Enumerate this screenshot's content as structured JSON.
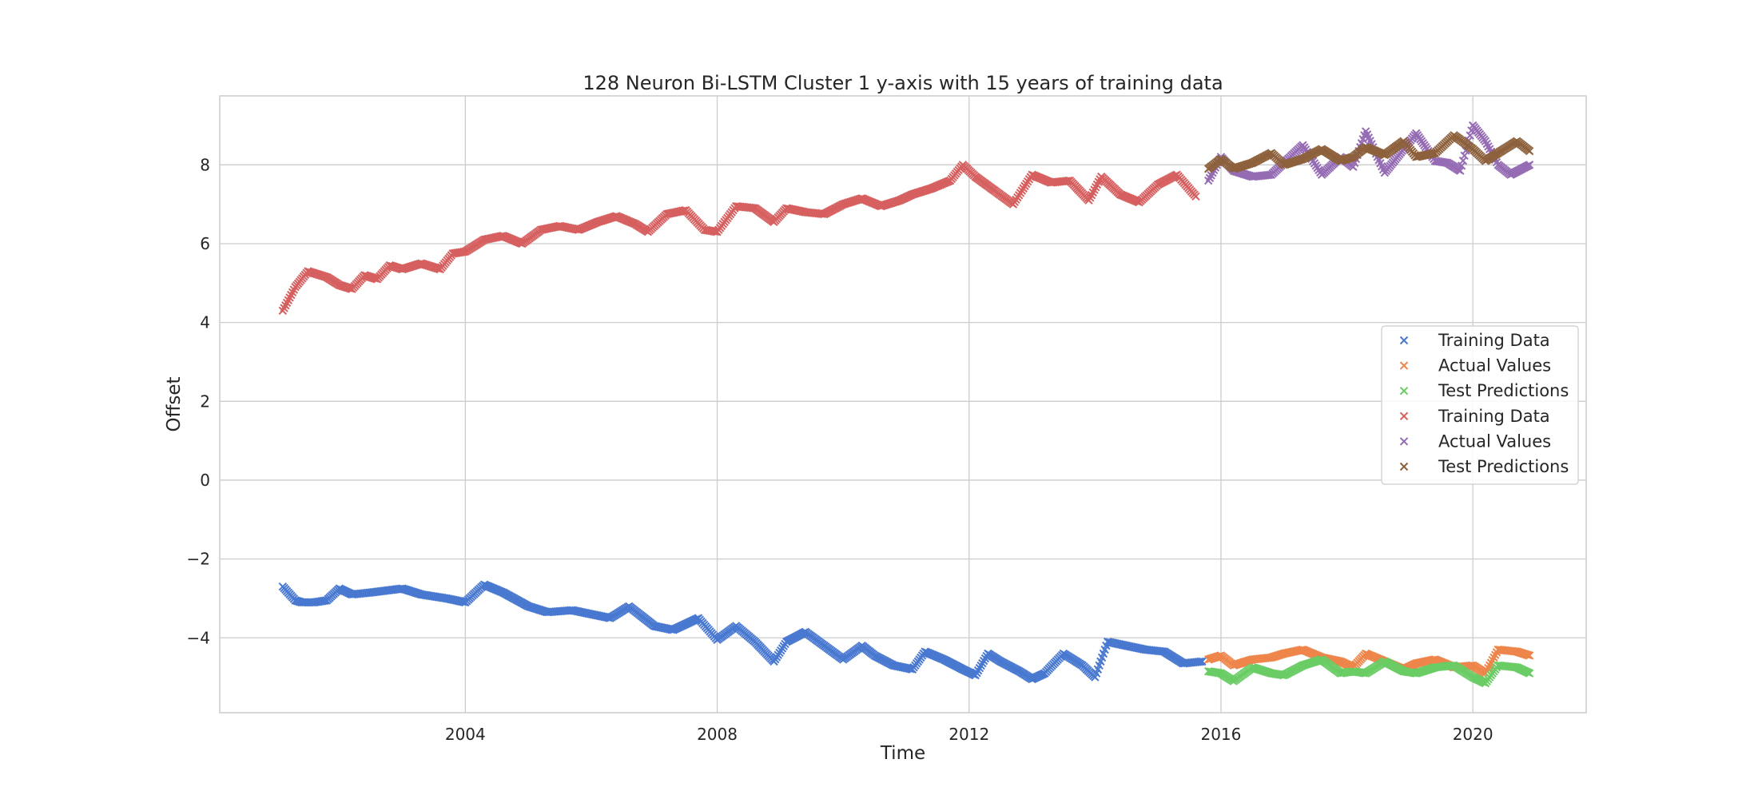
{
  "chart_data": {
    "type": "scatter",
    "title": "128 Neuron Bi-LSTM Cluster 1 y-axis with 15 years of training data",
    "xlabel": "Time",
    "ylabel": "Offset",
    "xlim": [
      2000.1,
      2021.8
    ],
    "ylim": [
      -5.9,
      9.75
    ],
    "x_ticks": [
      2004,
      2008,
      2012,
      2016,
      2020
    ],
    "y_ticks": [
      -4,
      -2,
      0,
      2,
      4,
      6,
      8
    ],
    "x_tick_labels": [
      "2004",
      "2008",
      "2012",
      "2016",
      "2020"
    ],
    "y_tick_labels": [
      "−4",
      "−2",
      "0",
      "2",
      "4",
      "6",
      "8"
    ],
    "grid": true,
    "marker": "x",
    "legend_position": "center-right",
    "series": [
      {
        "name": "Training Data",
        "color": "#4878d0",
        "x": [
          2001.1,
          2001.3,
          2001.4,
          2001.6,
          2001.8,
          2002.0,
          2002.2,
          2002.5,
          2003.0,
          2003.3,
          2003.7,
          2004.0,
          2004.3,
          2004.6,
          2005.0,
          2005.3,
          2005.7,
          2006.0,
          2006.3,
          2006.6,
          2007.0,
          2007.3,
          2007.7,
          2008.0,
          2008.3,
          2008.6,
          2008.9,
          2009.1,
          2009.4,
          2009.7,
          2010.0,
          2010.3,
          2010.5,
          2010.8,
          2011.1,
          2011.3,
          2011.6,
          2011.9,
          2012.1,
          2012.3,
          2012.5,
          2012.8,
          2013.0,
          2013.2,
          2013.5,
          2013.8,
          2014.0,
          2014.2,
          2014.5,
          2014.8,
          2015.1,
          2015.4,
          2015.7
        ],
        "y": [
          -2.7,
          -3.05,
          -3.1,
          -3.1,
          -3.05,
          -2.75,
          -2.9,
          -2.85,
          -2.75,
          -2.9,
          -3.0,
          -3.1,
          -2.65,
          -2.85,
          -3.2,
          -3.35,
          -3.3,
          -3.4,
          -3.5,
          -3.2,
          -3.7,
          -3.8,
          -3.5,
          -4.05,
          -3.7,
          -4.1,
          -4.6,
          -4.1,
          -3.85,
          -4.2,
          -4.55,
          -4.2,
          -4.45,
          -4.7,
          -4.8,
          -4.35,
          -4.55,
          -4.8,
          -4.95,
          -4.4,
          -4.6,
          -4.85,
          -5.05,
          -4.9,
          -4.4,
          -4.7,
          -5.0,
          -4.1,
          -4.2,
          -4.3,
          -4.35,
          -4.65,
          -4.6
        ]
      },
      {
        "name": "Actual Values",
        "color": "#ee854a",
        "x": [
          2015.8,
          2016.0,
          2016.2,
          2016.5,
          2016.8,
          2017.0,
          2017.3,
          2017.6,
          2017.9,
          2018.1,
          2018.3,
          2018.6,
          2018.9,
          2019.1,
          2019.4,
          2019.7,
          2020.0,
          2020.2,
          2020.4,
          2020.7,
          2020.9
        ],
        "y": [
          -4.55,
          -4.45,
          -4.7,
          -4.55,
          -4.5,
          -4.4,
          -4.3,
          -4.5,
          -4.6,
          -4.75,
          -4.4,
          -4.6,
          -4.8,
          -4.65,
          -4.55,
          -4.75,
          -4.7,
          -4.9,
          -4.3,
          -4.35,
          -4.45
        ]
      },
      {
        "name": "Test Predictions",
        "color": "#6acc64",
        "x": [
          2015.8,
          2016.0,
          2016.2,
          2016.5,
          2016.8,
          2017.0,
          2017.3,
          2017.6,
          2017.9,
          2018.1,
          2018.3,
          2018.6,
          2018.9,
          2019.1,
          2019.4,
          2019.7,
          2020.0,
          2020.2,
          2020.4,
          2020.7,
          2020.9
        ],
        "y": [
          -4.85,
          -4.9,
          -5.1,
          -4.75,
          -4.9,
          -4.95,
          -4.7,
          -4.55,
          -4.9,
          -4.85,
          -4.9,
          -4.6,
          -4.85,
          -4.9,
          -4.75,
          -4.7,
          -5.0,
          -5.15,
          -4.7,
          -4.75,
          -4.9
        ]
      },
      {
        "name": "Training Data",
        "color": "#d65f5f",
        "x": [
          2001.1,
          2001.3,
          2001.5,
          2001.8,
          2002.0,
          2002.2,
          2002.4,
          2002.6,
          2002.8,
          2003.0,
          2003.3,
          2003.6,
          2003.8,
          2004.0,
          2004.3,
          2004.6,
          2004.9,
          2005.2,
          2005.5,
          2005.8,
          2006.1,
          2006.4,
          2006.7,
          2006.9,
          2007.2,
          2007.5,
          2007.8,
          2008.0,
          2008.3,
          2008.6,
          2008.9,
          2009.1,
          2009.4,
          2009.7,
          2010.0,
          2010.3,
          2010.6,
          2010.9,
          2011.1,
          2011.4,
          2011.7,
          2011.9,
          2012.1,
          2012.4,
          2012.7,
          2013.0,
          2013.3,
          2013.6,
          2013.9,
          2014.1,
          2014.4,
          2014.7,
          2015.0,
          2015.3,
          2015.6
        ],
        "y": [
          4.3,
          4.9,
          5.3,
          5.15,
          4.95,
          4.85,
          5.2,
          5.1,
          5.45,
          5.35,
          5.5,
          5.35,
          5.75,
          5.8,
          6.1,
          6.2,
          6.0,
          6.35,
          6.45,
          6.35,
          6.55,
          6.7,
          6.5,
          6.3,
          6.75,
          6.85,
          6.35,
          6.3,
          6.95,
          6.9,
          6.55,
          6.9,
          6.8,
          6.75,
          7.0,
          7.15,
          6.95,
          7.1,
          7.25,
          7.4,
          7.6,
          8.0,
          7.7,
          7.35,
          7.0,
          7.75,
          7.55,
          7.6,
          7.1,
          7.7,
          7.25,
          7.05,
          7.5,
          7.75,
          7.2
        ]
      },
      {
        "name": "Actual Values",
        "color": "#956cb4",
        "x": [
          2015.8,
          2016.0,
          2016.2,
          2016.5,
          2016.8,
          2017.0,
          2017.3,
          2017.6,
          2017.9,
          2018.1,
          2018.3,
          2018.6,
          2018.9,
          2019.1,
          2019.4,
          2019.6,
          2019.8,
          2020.0,
          2020.2,
          2020.4,
          2020.6,
          2020.9
        ],
        "y": [
          7.6,
          8.2,
          7.85,
          7.7,
          7.75,
          8.05,
          8.5,
          7.75,
          8.2,
          7.95,
          8.85,
          7.8,
          8.4,
          8.8,
          8.1,
          8.05,
          7.85,
          9.0,
          8.6,
          8.0,
          7.75,
          8.0
        ]
      },
      {
        "name": "Test Predictions",
        "color": "#8c613c",
        "x": [
          2015.8,
          2016.0,
          2016.2,
          2016.5,
          2016.8,
          2017.0,
          2017.3,
          2017.6,
          2017.9,
          2018.1,
          2018.3,
          2018.6,
          2018.9,
          2019.1,
          2019.4,
          2019.7,
          2020.0,
          2020.2,
          2020.4,
          2020.7,
          2020.9
        ],
        "y": [
          7.9,
          8.15,
          7.9,
          8.05,
          8.3,
          8.0,
          8.15,
          8.4,
          8.1,
          8.2,
          8.45,
          8.25,
          8.6,
          8.2,
          8.3,
          8.75,
          8.4,
          8.1,
          8.3,
          8.6,
          8.35
        ]
      }
    ]
  }
}
